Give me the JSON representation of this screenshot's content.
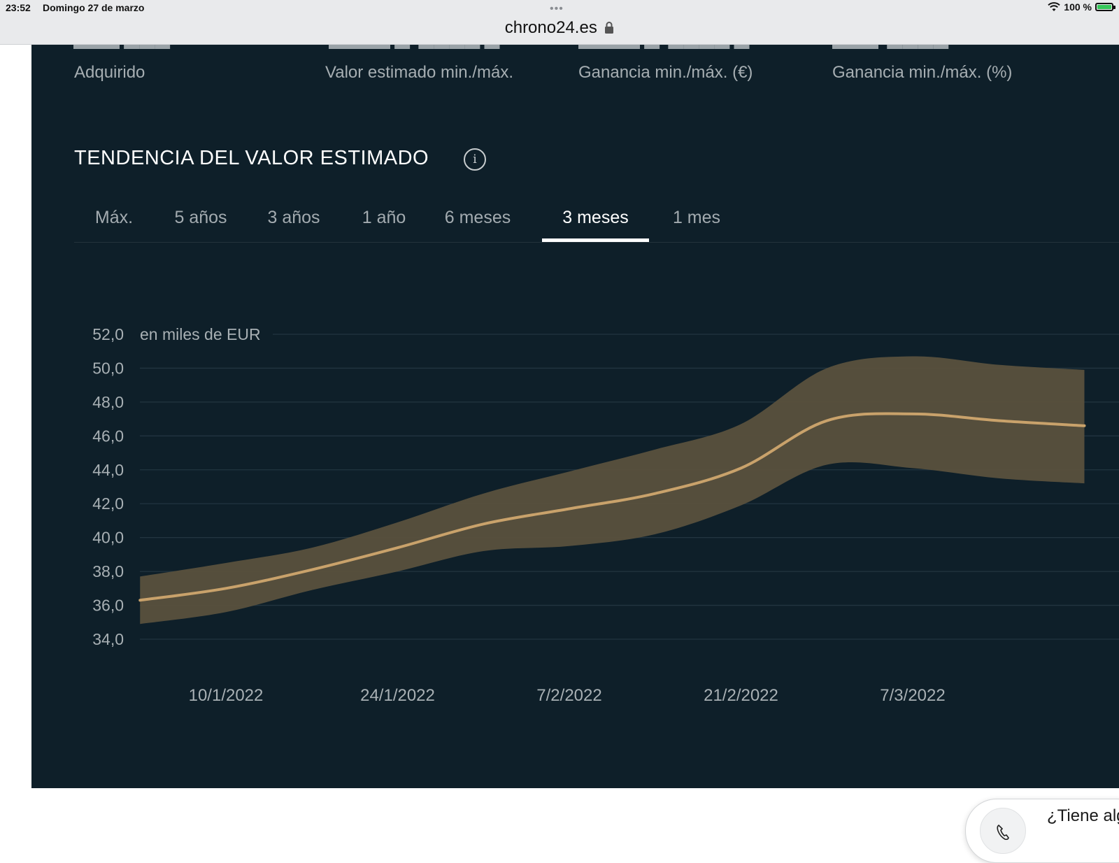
{
  "statusbar": {
    "time": "23:52",
    "date": "Domingo 27 de marzo",
    "battery": "100 %",
    "url": "chrono24.es"
  },
  "stats": {
    "labels": [
      "Adquirido",
      "Valor estimado min./máx.",
      "Ganancia min./máx. (€)",
      "Ganancia min./máx. (%)"
    ]
  },
  "section": {
    "title": "TENDENCIA DEL VALOR ESTIMADO"
  },
  "tabs": [
    {
      "label": "Máx.",
      "active": false
    },
    {
      "label": "5 años",
      "active": false
    },
    {
      "label": "3 años",
      "active": false
    },
    {
      "label": "1 año",
      "active": false
    },
    {
      "label": "6 meses",
      "active": false
    },
    {
      "label": "3 meses",
      "active": true
    },
    {
      "label": "1 mes",
      "active": false
    }
  ],
  "help": {
    "text": "¿Tiene alg"
  },
  "chart_data": {
    "type": "area",
    "unit_label": "en miles de EUR",
    "ylim": [
      34,
      52
    ],
    "yticks": [
      "52,0",
      "50,0",
      "48,0",
      "46,0",
      "44,0",
      "42,0",
      "40,0",
      "38,0",
      "36,0",
      "34,0"
    ],
    "ytick_values": [
      52,
      50,
      48,
      46,
      44,
      42,
      40,
      38,
      36,
      34
    ],
    "xticks": [
      "10/1/2022",
      "24/1/2022",
      "7/2/2022",
      "21/2/2022",
      "7/3/2022"
    ],
    "xtick_dates": [
      "2022-01-10",
      "2022-01-24",
      "2022-02-07",
      "2022-02-21",
      "2022-03-07"
    ],
    "grid": true,
    "series": [
      {
        "role": "estimate",
        "x": [
          "2022-01-03",
          "2022-01-10",
          "2022-01-17",
          "2022-01-24",
          "2022-01-31",
          "2022-02-07",
          "2022-02-14",
          "2022-02-21",
          "2022-02-28",
          "2022-03-07",
          "2022-03-14",
          "2022-03-21"
        ],
        "values": [
          36.3,
          37.0,
          38.1,
          39.4,
          40.8,
          41.7,
          42.6,
          44.1,
          46.9,
          47.3,
          46.9,
          46.6
        ],
        "color": "#c9a26b"
      },
      {
        "role": "upper",
        "x": [
          "2022-01-03",
          "2022-01-10",
          "2022-01-17",
          "2022-01-24",
          "2022-01-31",
          "2022-02-07",
          "2022-02-14",
          "2022-02-21",
          "2022-02-28",
          "2022-03-07",
          "2022-03-14",
          "2022-03-21"
        ],
        "values": [
          37.7,
          38.5,
          39.4,
          40.9,
          42.6,
          43.9,
          45.2,
          46.7,
          50.0,
          50.7,
          50.2,
          49.9
        ]
      },
      {
        "role": "lower",
        "x": [
          "2022-01-03",
          "2022-01-10",
          "2022-01-17",
          "2022-01-24",
          "2022-01-31",
          "2022-02-07",
          "2022-02-14",
          "2022-02-21",
          "2022-02-28",
          "2022-03-07",
          "2022-03-14",
          "2022-03-21"
        ],
        "values": [
          34.9,
          35.6,
          36.9,
          38.0,
          39.2,
          39.5,
          40.2,
          41.9,
          44.3,
          44.1,
          43.5,
          43.2
        ]
      }
    ],
    "band_color": "#5a513d"
  }
}
